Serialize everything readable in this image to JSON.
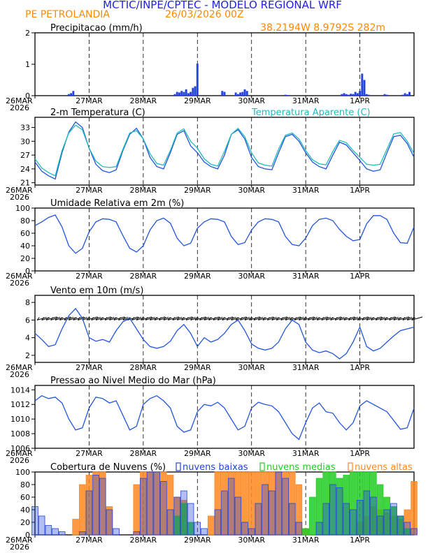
{
  "header": {
    "title": "MCTIC/INPE/CPTEC - MODELO REGIONAL WRF",
    "location": "PE PETROLANDIA",
    "run": "26/03/2026 00Z",
    "coords": "38.2194W 8.9792S 282m"
  },
  "colors": {
    "title": "#2222dd",
    "accent": "#ff8800",
    "temp": "#2255dd",
    "apparent": "#22bbbb",
    "cloud_low": "#2244dd",
    "cloud_mid": "#22cc22",
    "cloud_high": "#ff8822"
  },
  "time_axis": {
    "first_label": "26MAR",
    "year": "2026",
    "labels": [
      "26MAR",
      "27MAR",
      "28MAR",
      "29MAR",
      "30MAR",
      "31MAR",
      "1APR"
    ],
    "label_hours": [
      0,
      24,
      48,
      72,
      96,
      120,
      144
    ],
    "range_hours": [
      0,
      168
    ]
  },
  "chart_data": [
    {
      "type": "bar",
      "name": "precip",
      "title": "Precipitacao (mm/h)",
      "ylim": [
        0,
        2
      ],
      "yticks": [
        0,
        1,
        2
      ],
      "ytick_labels": [
        "0",
        "1",
        "2"
      ],
      "x_hours": [
        15,
        16,
        17,
        62,
        63,
        64,
        65,
        66,
        67,
        68,
        69,
        70,
        71,
        72,
        83,
        84,
        89,
        90,
        91,
        92,
        93,
        94,
        111,
        112,
        136,
        137,
        138,
        139,
        140,
        141,
        142,
        143,
        144,
        145,
        146,
        147,
        148,
        155,
        156,
        163,
        164,
        165,
        166
      ],
      "values": [
        0.05,
        0.08,
        0.15,
        0.05,
        0.12,
        0.1,
        0.15,
        0.12,
        0.2,
        0.08,
        0.12,
        0.25,
        0.3,
        1.02,
        0.15,
        0.12,
        0.1,
        0.05,
        0.1,
        0.12,
        0.2,
        0.15,
        0.03,
        0.02,
        0.05,
        0.08,
        0.05,
        0.03,
        0.06,
        0.05,
        0.12,
        0.08,
        0.15,
        0.7,
        0.5,
        0.05,
        0.03,
        0.05,
        0.03,
        0.03,
        0.08,
        0.05,
        0.12
      ]
    },
    {
      "type": "line",
      "name": "temperature",
      "title": "2-m Temperatura (C)",
      "legend": "Temperatura Aparente (C)",
      "ylim": [
        20.5,
        35.2
      ],
      "yticks": [
        21,
        24,
        27,
        30,
        33
      ],
      "ytick_labels": [
        "21",
        "24",
        "27",
        "30",
        "33"
      ],
      "x_hours": [
        0,
        3,
        6,
        9,
        12,
        15,
        18,
        21,
        24,
        27,
        30,
        33,
        36,
        39,
        42,
        45,
        48,
        51,
        54,
        57,
        60,
        63,
        66,
        69,
        72,
        75,
        78,
        81,
        84,
        87,
        90,
        93,
        96,
        99,
        102,
        105,
        108,
        111,
        114,
        117,
        120,
        123,
        126,
        129,
        132,
        135,
        138,
        141,
        144,
        147,
        150,
        153,
        156,
        159,
        162,
        165,
        168
      ],
      "series": [
        {
          "name": "2-m Temperatura",
          "values": [
            25.5,
            23.5,
            22.5,
            21.8,
            27.5,
            32.0,
            34.2,
            33.0,
            28.5,
            25.0,
            23.6,
            23.2,
            23.8,
            28.0,
            31.5,
            32.8,
            30.5,
            26.5,
            24.5,
            24.0,
            27.5,
            31.5,
            32.3,
            29.0,
            27.5,
            25.5,
            24.5,
            24.0,
            27.0,
            31.5,
            32.5,
            30.5,
            26.5,
            24.5,
            24.0,
            23.8,
            27.5,
            31.0,
            31.5,
            30.0,
            27.5,
            25.5,
            24.5,
            24.0,
            27.0,
            29.8,
            29.2,
            27.5,
            25.8,
            24.0,
            23.5,
            23.8,
            27.5,
            31.0,
            31.3,
            29.5,
            26.5
          ]
        },
        {
          "name": "Temperatura Aparente",
          "values": [
            26.2,
            24.2,
            23.2,
            22.5,
            28.0,
            31.8,
            33.5,
            32.5,
            28.5,
            25.7,
            24.5,
            24.3,
            24.5,
            28.3,
            31.8,
            32.3,
            30.5,
            27.3,
            25.2,
            24.8,
            28.0,
            31.8,
            32.7,
            30.0,
            28.5,
            26.2,
            25.0,
            24.6,
            27.8,
            31.5,
            32.8,
            31.0,
            27.5,
            25.3,
            24.8,
            24.6,
            28.3,
            31.3,
            31.8,
            30.5,
            28.0,
            26.0,
            25.1,
            24.9,
            27.8,
            30.2,
            29.7,
            28.0,
            26.5,
            25.0,
            24.8,
            25.0,
            28.3,
            31.6,
            31.9,
            30.0,
            27.3
          ]
        }
      ]
    },
    {
      "type": "line",
      "name": "humidity",
      "title": "Umidade Relativa em 2m (%)",
      "ylim": [
        0,
        100
      ],
      "yticks": [
        0,
        20,
        40,
        60,
        80,
        100
      ],
      "ytick_labels": [
        "0",
        "20",
        "40",
        "60",
        "80",
        "100"
      ],
      "x_hours": [
        0,
        3,
        6,
        9,
        12,
        15,
        18,
        21,
        24,
        27,
        30,
        33,
        36,
        39,
        42,
        45,
        48,
        51,
        54,
        57,
        60,
        63,
        66,
        69,
        72,
        75,
        78,
        81,
        84,
        87,
        90,
        93,
        96,
        99,
        102,
        105,
        108,
        111,
        114,
        117,
        120,
        123,
        126,
        129,
        132,
        135,
        138,
        141,
        144,
        147,
        150,
        153,
        156,
        159,
        162,
        165,
        168
      ],
      "series": [
        {
          "name": "Umidade Relativa",
          "values": [
            72,
            78,
            85,
            89,
            70,
            40,
            28,
            36,
            62,
            78,
            83,
            82,
            78,
            56,
            36,
            30,
            40,
            65,
            80,
            84,
            76,
            52,
            40,
            44,
            68,
            78,
            83,
            82,
            78,
            55,
            42,
            45,
            65,
            78,
            83,
            82,
            78,
            55,
            42,
            40,
            52,
            72,
            82,
            84,
            80,
            66,
            55,
            48,
            50,
            75,
            88,
            88,
            82,
            60,
            45,
            44,
            70
          ]
        }
      ]
    },
    {
      "type": "line",
      "name": "wind",
      "title": "Vento em 10m (m/s)",
      "ylim": [
        1.2,
        8.8
      ],
      "yticks": [
        2,
        4,
        6,
        8
      ],
      "ytick_labels": [
        "2",
        "4",
        "6",
        "8"
      ],
      "x_hours": [
        0,
        3,
        6,
        9,
        12,
        15,
        18,
        21,
        24,
        27,
        30,
        33,
        36,
        39,
        42,
        45,
        48,
        51,
        54,
        57,
        60,
        63,
        66,
        69,
        72,
        75,
        78,
        81,
        84,
        87,
        90,
        93,
        96,
        99,
        102,
        105,
        108,
        111,
        114,
        117,
        120,
        123,
        126,
        129,
        132,
        135,
        138,
        141,
        144,
        147,
        150,
        153,
        156,
        159,
        162,
        165,
        168
      ],
      "series": [
        {
          "name": "Vento",
          "values": [
            4.5,
            3.8,
            3.0,
            3.2,
            5.0,
            6.5,
            7.3,
            6.2,
            4.0,
            3.6,
            3.8,
            3.5,
            4.8,
            5.8,
            6.2,
            5.0,
            3.8,
            3.0,
            2.8,
            3.0,
            3.6,
            4.8,
            5.5,
            4.5,
            3.0,
            4.0,
            3.5,
            3.8,
            4.5,
            5.5,
            6.0,
            4.8,
            3.3,
            2.8,
            2.6,
            2.8,
            3.5,
            5.0,
            6.0,
            5.5,
            3.5,
            2.6,
            2.3,
            2.5,
            2.2,
            1.6,
            2.2,
            3.5,
            5.2,
            3.0,
            2.5,
            2.8,
            3.5,
            4.2,
            4.8,
            5.0,
            5.2
          ]
        }
      ],
      "vector_note": "wind barbs along 6 m/s line, direction from east-southeast"
    },
    {
      "type": "line",
      "name": "pressure",
      "title": "Pressao ao Nivel Medio do Mar (hPa)",
      "ylim": [
        1006,
        1014.6
      ],
      "yticks": [
        1006,
        1008,
        1010,
        1012,
        1014
      ],
      "ytick_labels": [
        "1006",
        "1008",
        "1010",
        "1012",
        "1014"
      ],
      "x_hours": [
        0,
        3,
        6,
        9,
        12,
        15,
        18,
        21,
        24,
        27,
        30,
        33,
        36,
        39,
        42,
        45,
        48,
        51,
        54,
        57,
        60,
        63,
        66,
        69,
        72,
        75,
        78,
        81,
        84,
        87,
        90,
        93,
        96,
        99,
        102,
        105,
        108,
        111,
        114,
        117,
        120,
        123,
        126,
        129,
        132,
        135,
        138,
        141,
        144,
        147,
        150,
        153,
        156,
        159,
        162,
        165,
        168
      ],
      "series": [
        {
          "name": "Pressao",
          "values": [
            1012.5,
            1013.2,
            1012.8,
            1013.0,
            1012.2,
            1010.0,
            1008.5,
            1008.8,
            1011.5,
            1013.0,
            1012.8,
            1012.2,
            1012.5,
            1010.5,
            1008.5,
            1009.0,
            1012.0,
            1012.8,
            1013.2,
            1012.5,
            1011.5,
            1009.0,
            1008.2,
            1008.5,
            1011.0,
            1012.0,
            1011.8,
            1012.3,
            1011.5,
            1010.0,
            1008.5,
            1009.0,
            1011.5,
            1012.3,
            1012.0,
            1011.8,
            1011.0,
            1009.5,
            1008.0,
            1007.2,
            1009.5,
            1011.5,
            1012.2,
            1011.0,
            1010.8,
            1009.5,
            1008.5,
            1009.5,
            1011.8,
            1012.5,
            1012.0,
            1011.5,
            1011.0,
            1009.8,
            1008.6,
            1008.8,
            1011.5
          ]
        }
      ]
    },
    {
      "type": "bar",
      "name": "clouds",
      "title": "Cobertura de Nuvens (%)",
      "legend": [
        "nuvens baixas",
        "nuvens medias",
        "nuvens altas"
      ],
      "ylim": [
        0,
        100
      ],
      "yticks": [
        0,
        20,
        40,
        60,
        80,
        100
      ],
      "ytick_labels": [
        "0",
        "20",
        "40",
        "60",
        "80",
        "100"
      ],
      "x_hours": [
        0,
        3,
        6,
        9,
        12,
        15,
        18,
        21,
        24,
        27,
        30,
        33,
        36,
        39,
        42,
        45,
        48,
        51,
        54,
        57,
        60,
        63,
        66,
        69,
        72,
        75,
        78,
        81,
        84,
        87,
        90,
        93,
        96,
        99,
        102,
        105,
        108,
        111,
        114,
        117,
        120,
        123,
        126,
        129,
        132,
        135,
        138,
        141,
        144,
        147,
        150,
        153,
        156,
        159,
        162,
        165,
        168
      ],
      "series": [
        {
          "name": "nuvens baixas",
          "values": [
            45,
            30,
            15,
            10,
            5,
            0,
            0,
            5,
            70,
            95,
            90,
            40,
            10,
            0,
            0,
            5,
            90,
            100,
            100,
            85,
            40,
            60,
            70,
            50,
            20,
            10,
            0,
            40,
            70,
            90,
            60,
            20,
            10,
            50,
            80,
            70,
            100,
            90,
            50,
            20,
            0,
            0,
            20,
            50,
            80,
            75,
            50,
            40,
            55,
            70,
            60,
            30,
            40,
            50,
            30,
            20,
            10
          ]
        },
        {
          "name": "nuvens medias",
          "values": [
            0,
            0,
            0,
            0,
            0,
            0,
            0,
            0,
            0,
            0,
            0,
            0,
            0,
            0,
            0,
            0,
            0,
            0,
            0,
            0,
            0,
            30,
            50,
            20,
            0,
            0,
            0,
            0,
            0,
            0,
            0,
            0,
            0,
            0,
            0,
            0,
            0,
            0,
            0,
            0,
            10,
            60,
            90,
            100,
            100,
            90,
            95,
            100,
            100,
            100,
            100,
            80,
            60,
            45,
            30,
            10,
            0
          ]
        },
        {
          "name": "nuvens altas",
          "values": [
            0,
            0,
            0,
            0,
            0,
            0,
            25,
            80,
            95,
            100,
            100,
            45,
            0,
            0,
            0,
            80,
            100,
            100,
            100,
            100,
            95,
            60,
            55,
            0,
            0,
            0,
            30,
            100,
            100,
            100,
            100,
            100,
            100,
            100,
            100,
            100,
            100,
            100,
            100,
            80,
            10,
            0,
            0,
            0,
            0,
            0,
            0,
            0,
            20,
            30,
            45,
            40,
            35,
            30,
            25,
            40,
            85
          ]
        }
      ]
    }
  ]
}
